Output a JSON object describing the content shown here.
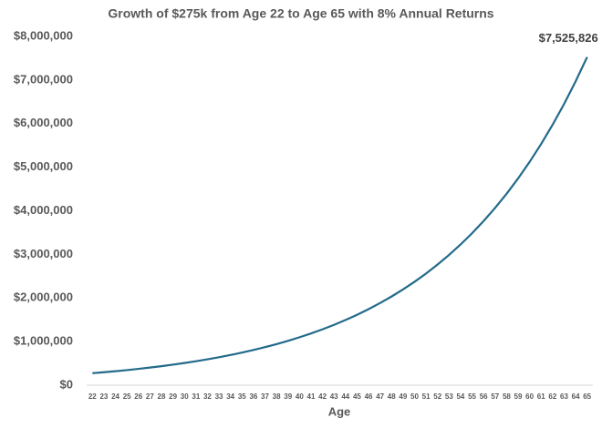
{
  "chart_data": {
    "type": "line",
    "title": "Growth of $275k from Age 22 to Age 65 with 8% Annual Returns",
    "x_label": "Age",
    "categories": [
      "22",
      "23",
      "24",
      "25",
      "26",
      "27",
      "28",
      "29",
      "30",
      "31",
      "32",
      "33",
      "34",
      "35",
      "36",
      "37",
      "38",
      "39",
      "40",
      "41",
      "42",
      "43",
      "44",
      "45",
      "46",
      "47",
      "48",
      "49",
      "50",
      "51",
      "52",
      "53",
      "54",
      "55",
      "56",
      "57",
      "58",
      "59",
      "60",
      "61",
      "62",
      "63",
      "64",
      "65"
    ],
    "series": [
      {
        "name": "Value",
        "color": "#236a8a",
        "values": [
          275000,
          297000,
          320760,
          346421,
          374134,
          404065,
          436390,
          471302,
          509006,
          549726,
          593704,
          641201,
          692497,
          747897,
          807728,
          872347,
          942134,
          1017505,
          1098905,
          1186818,
          1281763,
          1384304,
          1495049,
          1614653,
          1743825,
          1883331,
          2033997,
          2196717,
          2372454,
          2562251,
          2767231,
          2988609,
          3227698,
          3485914,
          3764787,
          4065970,
          4391247,
          4742547,
          5121951,
          5531707,
          5974243,
          6452183,
          6968358,
          7525826
        ],
        "value_labels": [
          null,
          null,
          null,
          null,
          null,
          null,
          null,
          null,
          null,
          null,
          null,
          null,
          null,
          null,
          null,
          null,
          null,
          null,
          null,
          null,
          null,
          null,
          null,
          null,
          null,
          null,
          null,
          null,
          null,
          null,
          null,
          null,
          null,
          null,
          null,
          null,
          null,
          null,
          null,
          null,
          null,
          null,
          null,
          "$7,525,826"
        ]
      }
    ],
    "ylim": [
      0,
      8000000
    ],
    "yticks": [
      {
        "value": 0,
        "label": "$0"
      },
      {
        "value": 1000000,
        "label": "$1,000,000"
      },
      {
        "value": 2000000,
        "label": "$2,000,000"
      },
      {
        "value": 3000000,
        "label": "$3,000,000"
      },
      {
        "value": 4000000,
        "label": "$4,000,000"
      },
      {
        "value": 5000000,
        "label": "$5,000,000"
      },
      {
        "value": 6000000,
        "label": "$6,000,000"
      },
      {
        "value": 7000000,
        "label": "$7,000,000"
      },
      {
        "value": 8000000,
        "label": "$8,000,000"
      }
    ],
    "grid": false
  }
}
